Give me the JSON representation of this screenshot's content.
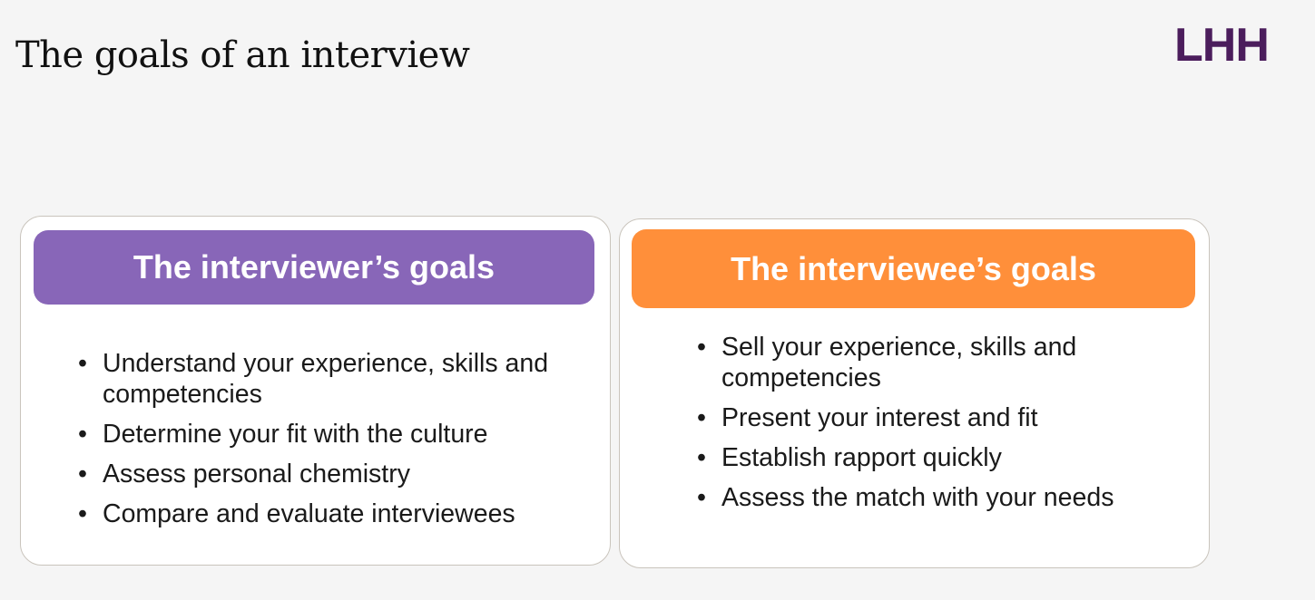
{
  "slide": {
    "title": "The goals of an interview",
    "logo_text": "LHH",
    "bullet_char": "•"
  },
  "colors": {
    "logo": "#4b1d5c",
    "interviewer_header": "#8866b8",
    "interviewee_header": "#ff8f3a",
    "card_border": "#c9c4bc",
    "background": "#f5f5f5"
  },
  "interviewer": {
    "heading": "The interviewer’s goals",
    "goals": [
      "Understand your experience, skills and competencies",
      "Determine your fit with the culture",
      "Assess personal chemistry",
      "Compare and evaluate interviewees"
    ]
  },
  "interviewee": {
    "heading": "The interviewee’s goals",
    "goals": [
      "Sell your experience, skills and competencies",
      "Present your interest and fit",
      "Establish rapport quickly",
      "Assess the match with your needs"
    ]
  }
}
